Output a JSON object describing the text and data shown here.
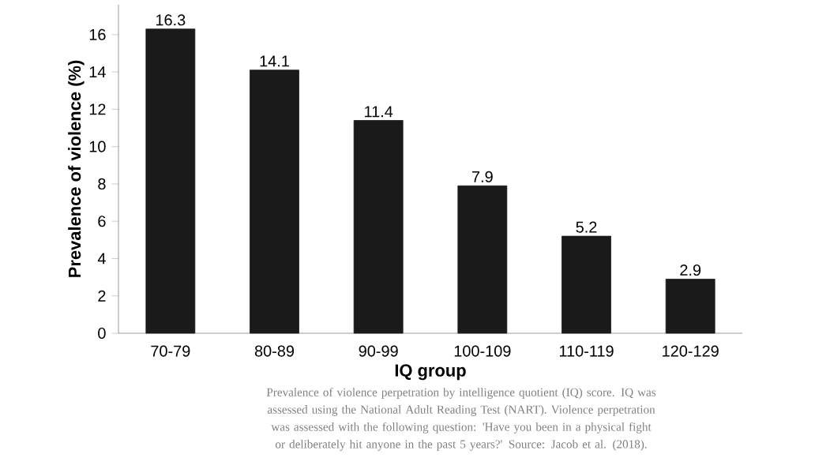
{
  "chart_data": {
    "type": "bar",
    "categories": [
      "70-79",
      "80-89",
      "90-99",
      "100-109",
      "110-119",
      "120-129"
    ],
    "values": [
      16.3,
      14.1,
      11.4,
      7.9,
      5.2,
      2.9
    ],
    "color": "#1a1a1a",
    "xlabel": "IQ group",
    "ylabel": "Prevalence of violence (%)",
    "ylim": [
      0,
      17.6
    ],
    "yticks": [
      0,
      2,
      4,
      6,
      8,
      10,
      12,
      14,
      16
    ],
    "data_labels": true,
    "annotations": [
      "Prevalence of violence perpetration by intelligence quotient (IQ) score. IQ was assessed using the National Adult Reading Test (NART). Violence perpetration was assessed with the following question: 'Have you been in a physical fight or deliberately hit anyone in the past 5 years?' Source: Jacob et al. (2018)."
    ]
  }
}
